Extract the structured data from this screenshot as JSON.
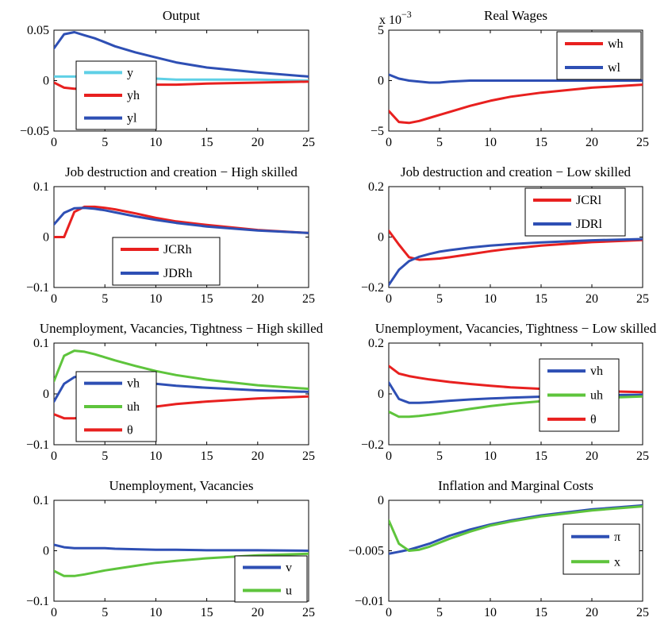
{
  "colors": {
    "red": "#e8201f",
    "blue": "#2e4fb4",
    "cyan": "#5fd0e6",
    "green": "#5ec43c"
  },
  "chart_data": [
    {
      "type": "line",
      "title": "Output",
      "exponent": "",
      "xlim": [
        0,
        25
      ],
      "ylim": [
        -0.05,
        0.05
      ],
      "xticks": [
        "0",
        "5",
        "10",
        "15",
        "20",
        "25"
      ],
      "yticks": [
        "-0.05",
        "0",
        "0.05"
      ],
      "legend_position": "bottom-left",
      "series": [
        {
          "name": "y",
          "color": "#5fd0e6",
          "x": [
            0,
            1,
            2,
            3,
            4,
            5,
            6,
            8,
            10,
            12,
            15,
            20,
            25
          ],
          "y": [
            0.004,
            0.004,
            0.004,
            0.004,
            0.003,
            0.003,
            0.002,
            0.002,
            0.002,
            0.001,
            0.001,
            0.001,
            0.0
          ]
        },
        {
          "name": "yh",
          "color": "#e8201f",
          "x": [
            0,
            1,
            2,
            3,
            4,
            5,
            6,
            8,
            10,
            12,
            15,
            20,
            25
          ],
          "y": [
            -0.002,
            -0.007,
            -0.008,
            -0.008,
            -0.007,
            -0.007,
            -0.006,
            -0.005,
            -0.004,
            -0.004,
            -0.003,
            -0.002,
            -0.001
          ]
        },
        {
          "name": "yl",
          "color": "#2e4fb4",
          "x": [
            0,
            1,
            2,
            3,
            4,
            5,
            6,
            8,
            10,
            12,
            15,
            20,
            25
          ],
          "y": [
            0.032,
            0.046,
            0.048,
            0.045,
            0.042,
            0.038,
            0.034,
            0.028,
            0.023,
            0.018,
            0.013,
            0.008,
            0.004
          ]
        }
      ]
    },
    {
      "type": "line",
      "title": "Real Wages",
      "exponent": "x 10",
      "exponent_power": "-3",
      "xlim": [
        0,
        25
      ],
      "ylim": [
        -5,
        5
      ],
      "xticks": [
        "0",
        "5",
        "10",
        "15",
        "20",
        "25"
      ],
      "yticks": [
        "-5",
        "0",
        "5"
      ],
      "legend_position": "top-right",
      "series": [
        {
          "name": "wh",
          "color": "#e8201f",
          "x": [
            0,
            1,
            2,
            3,
            4,
            5,
            6,
            8,
            10,
            12,
            15,
            20,
            25
          ],
          "y": [
            -3.0,
            -4.1,
            -4.2,
            -4.0,
            -3.7,
            -3.4,
            -3.1,
            -2.5,
            -2.0,
            -1.6,
            -1.2,
            -0.7,
            -0.4
          ]
        },
        {
          "name": "wl",
          "color": "#2e4fb4",
          "x": [
            0,
            1,
            2,
            3,
            4,
            5,
            6,
            8,
            10,
            12,
            15,
            20,
            25
          ],
          "y": [
            0.6,
            0.2,
            0.0,
            -0.1,
            -0.2,
            -0.2,
            -0.1,
            0.0,
            0.0,
            0.0,
            0.0,
            0.0,
            0.0
          ]
        }
      ]
    },
    {
      "type": "line",
      "title": "Job destruction and creation − High skilled",
      "exponent": "",
      "xlim": [
        0,
        25
      ],
      "ylim": [
        -0.1,
        0.1
      ],
      "xticks": [
        "0",
        "5",
        "10",
        "15",
        "20",
        "25"
      ],
      "yticks": [
        "-0.1",
        "0",
        "0.1"
      ],
      "legend_position": "bottom-center",
      "series": [
        {
          "name": "JCRh",
          "color": "#e8201f",
          "x": [
            0,
            1,
            2,
            3,
            4,
            5,
            6,
            8,
            10,
            12,
            15,
            20,
            25
          ],
          "y": [
            0.0,
            0.0,
            0.05,
            0.06,
            0.06,
            0.058,
            0.055,
            0.047,
            0.038,
            0.031,
            0.024,
            0.014,
            0.008
          ]
        },
        {
          "name": "JDRh",
          "color": "#2e4fb4",
          "x": [
            0,
            1,
            2,
            3,
            4,
            5,
            6,
            8,
            10,
            12,
            15,
            20,
            25
          ],
          "y": [
            0.025,
            0.048,
            0.057,
            0.058,
            0.056,
            0.053,
            0.049,
            0.041,
            0.034,
            0.028,
            0.021,
            0.013,
            0.008
          ]
        }
      ]
    },
    {
      "type": "line",
      "title": "Job destruction and creation − Low skilled",
      "exponent": "",
      "xlim": [
        0,
        25
      ],
      "ylim": [
        -0.2,
        0.2
      ],
      "xticks": [
        "0",
        "5",
        "10",
        "15",
        "20",
        "25"
      ],
      "yticks": [
        "-0.2",
        "0",
        "0.2"
      ],
      "legend_position": "top-right",
      "series": [
        {
          "name": "JCRl",
          "color": "#e8201f",
          "x": [
            0,
            1,
            2,
            3,
            4,
            5,
            6,
            8,
            10,
            12,
            15,
            20,
            25
          ],
          "y": [
            0.025,
            -0.03,
            -0.08,
            -0.09,
            -0.088,
            -0.085,
            -0.08,
            -0.068,
            -0.056,
            -0.046,
            -0.034,
            -0.02,
            -0.012
          ]
        },
        {
          "name": "JDRl",
          "color": "#2e4fb4",
          "x": [
            0,
            1,
            2,
            3,
            4,
            5,
            6,
            8,
            10,
            12,
            15,
            20,
            25
          ],
          "y": [
            -0.19,
            -0.13,
            -0.095,
            -0.078,
            -0.067,
            -0.058,
            -0.052,
            -0.042,
            -0.034,
            -0.028,
            -0.021,
            -0.013,
            -0.008
          ]
        }
      ]
    },
    {
      "type": "line",
      "title": "Unemployment, Vacancies, Tightness − High skilled",
      "exponent": "",
      "xlim": [
        0,
        25
      ],
      "ylim": [
        -0.1,
        0.1
      ],
      "xticks": [
        "0",
        "5",
        "10",
        "15",
        "20",
        "25"
      ],
      "yticks": [
        "-0.1",
        "0",
        "0.1"
      ],
      "legend_position": "bottom-left",
      "series": [
        {
          "name": "vh",
          "color": "#2e4fb4",
          "x": [
            0,
            1,
            2,
            3,
            4,
            5,
            6,
            8,
            10,
            12,
            15,
            20,
            25
          ],
          "y": [
            -0.015,
            0.02,
            0.033,
            0.036,
            0.035,
            0.033,
            0.03,
            0.025,
            0.02,
            0.016,
            0.012,
            0.007,
            0.004
          ]
        },
        {
          "name": "uh",
          "color": "#5ec43c",
          "x": [
            0,
            1,
            2,
            3,
            4,
            5,
            6,
            8,
            10,
            12,
            15,
            20,
            25
          ],
          "y": [
            0.025,
            0.075,
            0.085,
            0.083,
            0.078,
            0.072,
            0.066,
            0.055,
            0.045,
            0.037,
            0.028,
            0.017,
            0.01
          ]
        },
        {
          "name": "θ",
          "color": "#e8201f",
          "x": [
            0,
            1,
            2,
            3,
            4,
            5,
            6,
            8,
            10,
            12,
            15,
            20,
            25
          ],
          "y": [
            -0.04,
            -0.048,
            -0.048,
            -0.046,
            -0.043,
            -0.04,
            -0.037,
            -0.031,
            -0.025,
            -0.02,
            -0.015,
            -0.009,
            -0.005
          ]
        }
      ]
    },
    {
      "type": "line",
      "title": "Unemployment, Vacancies, Tightness − Low skilled",
      "exponent": "",
      "xlim": [
        0,
        25
      ],
      "ylim": [
        -0.2,
        0.2
      ],
      "xticks": [
        "0",
        "5",
        "10",
        "15",
        "20",
        "25"
      ],
      "yticks": [
        "-0.2",
        "0",
        "0.2"
      ],
      "legend_position": "top-right",
      "series": [
        {
          "name": "vh",
          "color": "#2e4fb4",
          "x": [
            0,
            1,
            2,
            3,
            4,
            5,
            6,
            8,
            10,
            12,
            15,
            20,
            25
          ],
          "y": [
            0.045,
            -0.02,
            -0.035,
            -0.035,
            -0.033,
            -0.03,
            -0.027,
            -0.022,
            -0.018,
            -0.015,
            -0.011,
            -0.006,
            -0.003
          ]
        },
        {
          "name": "uh",
          "color": "#5ec43c",
          "x": [
            0,
            1,
            2,
            3,
            4,
            5,
            6,
            8,
            10,
            12,
            15,
            20,
            25
          ],
          "y": [
            -0.07,
            -0.09,
            -0.09,
            -0.087,
            -0.082,
            -0.077,
            -0.071,
            -0.059,
            -0.048,
            -0.039,
            -0.029,
            -0.017,
            -0.01
          ]
        },
        {
          "name": "θ",
          "color": "#e8201f",
          "x": [
            0,
            1,
            2,
            3,
            4,
            5,
            6,
            8,
            10,
            12,
            15,
            20,
            25
          ],
          "y": [
            0.11,
            0.08,
            0.07,
            0.063,
            0.057,
            0.052,
            0.047,
            0.039,
            0.032,
            0.026,
            0.02,
            0.012,
            0.007
          ]
        }
      ]
    },
    {
      "type": "line",
      "title": "Unemployment, Vacancies",
      "exponent": "",
      "xlim": [
        0,
        25
      ],
      "ylim": [
        -0.1,
        0.1
      ],
      "xticks": [
        "0",
        "5",
        "10",
        "15",
        "20",
        "25"
      ],
      "yticks": [
        "-0.1",
        "0",
        "0.1"
      ],
      "legend_position": "bottom-right",
      "series": [
        {
          "name": "v",
          "color": "#2e4fb4",
          "x": [
            0,
            1,
            2,
            3,
            4,
            5,
            6,
            8,
            10,
            12,
            15,
            20,
            25
          ],
          "y": [
            0.012,
            0.007,
            0.005,
            0.005,
            0.005,
            0.005,
            0.004,
            0.003,
            0.002,
            0.002,
            0.001,
            0.001,
            0.0
          ]
        },
        {
          "name": "u",
          "color": "#5ec43c",
          "x": [
            0,
            1,
            2,
            3,
            4,
            5,
            6,
            8,
            10,
            12,
            15,
            20,
            25
          ],
          "y": [
            -0.04,
            -0.05,
            -0.05,
            -0.047,
            -0.043,
            -0.039,
            -0.036,
            -0.03,
            -0.024,
            -0.02,
            -0.015,
            -0.009,
            -0.006
          ]
        }
      ]
    },
    {
      "type": "line",
      "title": "Inflation and Marginal Costs",
      "exponent": "",
      "xlim": [
        0,
        25
      ],
      "ylim": [
        -0.01,
        0
      ],
      "xticks": [
        "0",
        "5",
        "10",
        "15",
        "20",
        "25"
      ],
      "yticks": [
        "-0.01",
        "-0.005",
        "0"
      ],
      "legend_position": "bottom-right",
      "series": [
        {
          "name": "π",
          "color": "#2e4fb4",
          "x": [
            0,
            1,
            2,
            3,
            4,
            5,
            6,
            8,
            10,
            12,
            15,
            20,
            25
          ],
          "y": [
            -0.0053,
            -0.0051,
            -0.0049,
            -0.0046,
            -0.0043,
            -0.0039,
            -0.0035,
            -0.0029,
            -0.0024,
            -0.002,
            -0.0015,
            -0.0009,
            -0.0005
          ]
        },
        {
          "name": "x",
          "color": "#5ec43c",
          "x": [
            0,
            1,
            2,
            3,
            4,
            5,
            6,
            8,
            10,
            12,
            15,
            20,
            25
          ],
          "y": [
            -0.002,
            -0.0043,
            -0.005,
            -0.0049,
            -0.0046,
            -0.0042,
            -0.0038,
            -0.0031,
            -0.0025,
            -0.0021,
            -0.0016,
            -0.001,
            -0.0006
          ]
        }
      ]
    }
  ]
}
